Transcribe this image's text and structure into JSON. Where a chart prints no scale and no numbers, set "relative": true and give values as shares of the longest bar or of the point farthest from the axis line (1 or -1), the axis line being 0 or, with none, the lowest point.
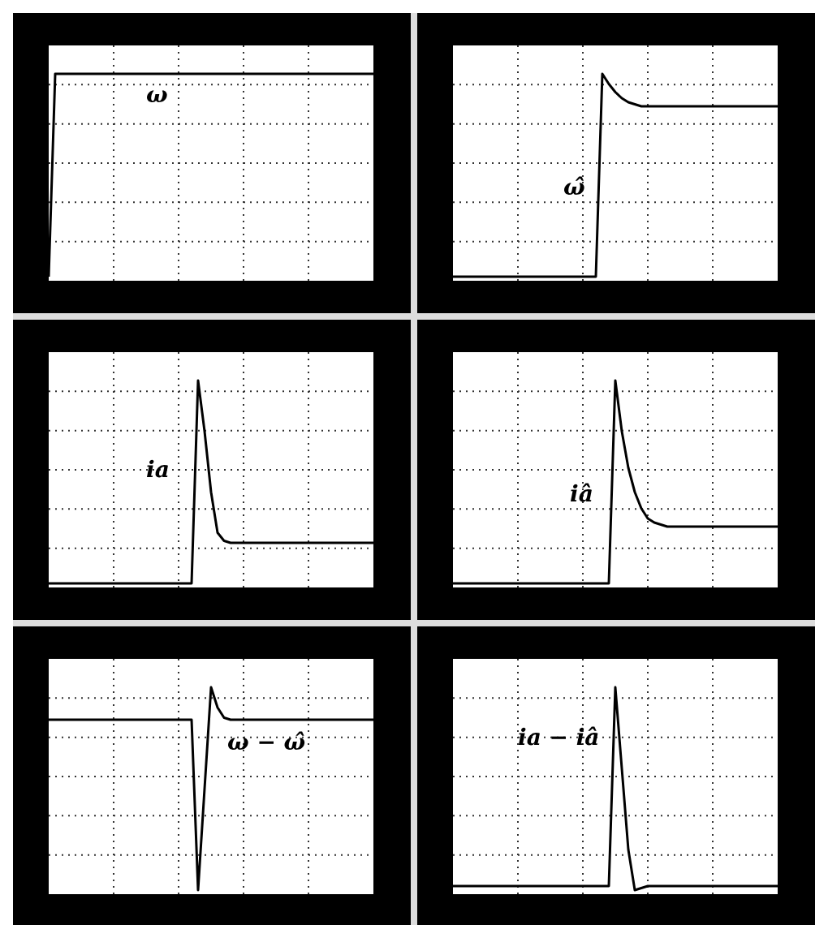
{
  "chart_data": [
    {
      "type": "line",
      "relative": true,
      "grid": true,
      "marker": "none",
      "line_style": "solid",
      "categories": [
        null,
        null,
        null,
        null,
        null,
        null,
        null,
        null,
        null,
        null,
        null,
        null,
        null,
        null,
        null,
        null,
        null,
        null,
        null,
        null,
        null,
        null,
        null,
        null,
        null,
        null,
        null,
        null,
        null,
        null,
        null,
        null,
        null,
        null,
        null,
        null,
        null,
        null,
        null,
        null,
        null,
        null,
        null,
        null,
        null,
        null,
        null,
        null,
        null,
        null,
        null
      ],
      "series": [
        {
          "name": "ω",
          "color": "#000000",
          "values": [
            0,
            1,
            1,
            1,
            1,
            1,
            1,
            1,
            1,
            1,
            1,
            1,
            1,
            1,
            1,
            1,
            1,
            1,
            1,
            1,
            1,
            1,
            1,
            1,
            1,
            1,
            1,
            1,
            1,
            1,
            1,
            1,
            1,
            1,
            1,
            1,
            1,
            1,
            1,
            1,
            1,
            1,
            1,
            1,
            1,
            1,
            1,
            1,
            1,
            1,
            1
          ]
        }
      ]
    },
    {
      "type": "line",
      "relative": true,
      "grid": true,
      "marker": "none",
      "line_style": "solid",
      "categories": [
        null,
        null,
        null,
        null,
        null,
        null,
        null,
        null,
        null,
        null,
        null,
        null,
        null,
        null,
        null,
        null,
        null,
        null,
        null,
        null,
        null,
        null,
        null,
        null,
        null,
        null,
        null,
        null,
        null,
        null,
        null,
        null,
        null,
        null,
        null,
        null,
        null,
        null,
        null,
        null,
        null,
        null,
        null,
        null,
        null,
        null,
        null,
        null,
        null,
        null,
        null
      ],
      "series": [
        {
          "name": "ω̂",
          "color": "#000000",
          "values": [
            0,
            0,
            0,
            0,
            0,
            0,
            0,
            0,
            0,
            0,
            0,
            0,
            0,
            0,
            0,
            0,
            0,
            0,
            0,
            0,
            0,
            0,
            0,
            1,
            0.95,
            0.91,
            0.88,
            0.86,
            0.85,
            0.84,
            0.84,
            0.84,
            0.84,
            0.84,
            0.84,
            0.84,
            0.84,
            0.84,
            0.84,
            0.84,
            0.84,
            0.84,
            0.84,
            0.84,
            0.84,
            0.84,
            0.84,
            0.84,
            0.84,
            0.84,
            0.84
          ]
        }
      ]
    },
    {
      "type": "line",
      "relative": true,
      "grid": true,
      "marker": "none",
      "line_style": "solid",
      "categories": [
        null,
        null,
        null,
        null,
        null,
        null,
        null,
        null,
        null,
        null,
        null,
        null,
        null,
        null,
        null,
        null,
        null,
        null,
        null,
        null,
        null,
        null,
        null,
        null,
        null,
        null,
        null,
        null,
        null,
        null,
        null,
        null,
        null,
        null,
        null,
        null,
        null,
        null,
        null,
        null,
        null,
        null,
        null,
        null,
        null,
        null,
        null,
        null,
        null,
        null,
        null
      ],
      "series": [
        {
          "name": "ia",
          "color": "#000000",
          "values": [
            0,
            0,
            0,
            0,
            0,
            0,
            0,
            0,
            0,
            0,
            0,
            0,
            0,
            0,
            0,
            0,
            0,
            0,
            0,
            0,
            0,
            0,
            0,
            1,
            0.75,
            0.45,
            0.25,
            0.21,
            0.2,
            0.2,
            0.2,
            0.2,
            0.2,
            0.2,
            0.2,
            0.2,
            0.2,
            0.2,
            0.2,
            0.2,
            0.2,
            0.2,
            0.2,
            0.2,
            0.2,
            0.2,
            0.2,
            0.2,
            0.2,
            0.2,
            0.2
          ]
        }
      ]
    },
    {
      "type": "line",
      "relative": true,
      "grid": true,
      "marker": "none",
      "line_style": "solid",
      "categories": [
        null,
        null,
        null,
        null,
        null,
        null,
        null,
        null,
        null,
        null,
        null,
        null,
        null,
        null,
        null,
        null,
        null,
        null,
        null,
        null,
        null,
        null,
        null,
        null,
        null,
        null,
        null,
        null,
        null,
        null,
        null,
        null,
        null,
        null,
        null,
        null,
        null,
        null,
        null,
        null,
        null,
        null,
        null,
        null,
        null,
        null,
        null,
        null,
        null,
        null,
        null
      ],
      "series": [
        {
          "name": "iâ",
          "color": "#000000",
          "values": [
            0,
            0,
            0,
            0,
            0,
            0,
            0,
            0,
            0,
            0,
            0,
            0,
            0,
            0,
            0,
            0,
            0,
            0,
            0,
            0,
            0,
            0,
            0,
            0,
            0,
            1,
            0.75,
            0.57,
            0.45,
            0.37,
            0.32,
            0.3,
            0.29,
            0.28,
            0.28,
            0.28,
            0.28,
            0.28,
            0.28,
            0.28,
            0.28,
            0.28,
            0.28,
            0.28,
            0.28,
            0.28,
            0.28,
            0.28,
            0.28,
            0.28,
            0.28
          ]
        }
      ]
    },
    {
      "type": "line",
      "relative": true,
      "grid": true,
      "marker": "none",
      "line_style": "solid",
      "categories": [
        null,
        null,
        null,
        null,
        null,
        null,
        null,
        null,
        null,
        null,
        null,
        null,
        null,
        null,
        null,
        null,
        null,
        null,
        null,
        null,
        null,
        null,
        null,
        null,
        null,
        null,
        null,
        null,
        null,
        null,
        null,
        null,
        null,
        null,
        null,
        null,
        null,
        null,
        null,
        null,
        null,
        null,
        null,
        null,
        null,
        null,
        null,
        null,
        null,
        null,
        null
      ],
      "series": [
        {
          "name": "ω − ω̂",
          "color": "#000000",
          "values": [
            0.84,
            0.84,
            0.84,
            0.84,
            0.84,
            0.84,
            0.84,
            0.84,
            0.84,
            0.84,
            0.84,
            0.84,
            0.84,
            0.84,
            0.84,
            0.84,
            0.84,
            0.84,
            0.84,
            0.84,
            0.84,
            0.84,
            0.84,
            0,
            0.5,
            1,
            0.9,
            0.85,
            0.84,
            0.84,
            0.84,
            0.84,
            0.84,
            0.84,
            0.84,
            0.84,
            0.84,
            0.84,
            0.84,
            0.84,
            0.84,
            0.84,
            0.84,
            0.84,
            0.84,
            0.84,
            0.84,
            0.84,
            0.84,
            0.84,
            0.84
          ]
        }
      ]
    },
    {
      "type": "line",
      "relative": true,
      "grid": true,
      "marker": "none",
      "line_style": "solid",
      "categories": [
        null,
        null,
        null,
        null,
        null,
        null,
        null,
        null,
        null,
        null,
        null,
        null,
        null,
        null,
        null,
        null,
        null,
        null,
        null,
        null,
        null,
        null,
        null,
        null,
        null,
        null,
        null,
        null,
        null,
        null,
        null,
        null,
        null,
        null,
        null,
        null,
        null,
        null,
        null,
        null,
        null,
        null,
        null,
        null,
        null,
        null,
        null,
        null,
        null,
        null,
        null
      ],
      "series": [
        {
          "name": "ia − iâ",
          "color": "#000000",
          "values": [
            0.02,
            0.02,
            0.02,
            0.02,
            0.02,
            0.02,
            0.02,
            0.02,
            0.02,
            0.02,
            0.02,
            0.02,
            0.02,
            0.02,
            0.02,
            0.02,
            0.02,
            0.02,
            0.02,
            0.02,
            0.02,
            0.02,
            0.02,
            0.02,
            0.02,
            1,
            0.6,
            0.2,
            0,
            0.01,
            0.02,
            0.02,
            0.02,
            0.02,
            0.02,
            0.02,
            0.02,
            0.02,
            0.02,
            0.02,
            0.02,
            0.02,
            0.02,
            0.02,
            0.02,
            0.02,
            0.02,
            0.02,
            0.02,
            0.02,
            0.02
          ]
        }
      ]
    }
  ]
}
